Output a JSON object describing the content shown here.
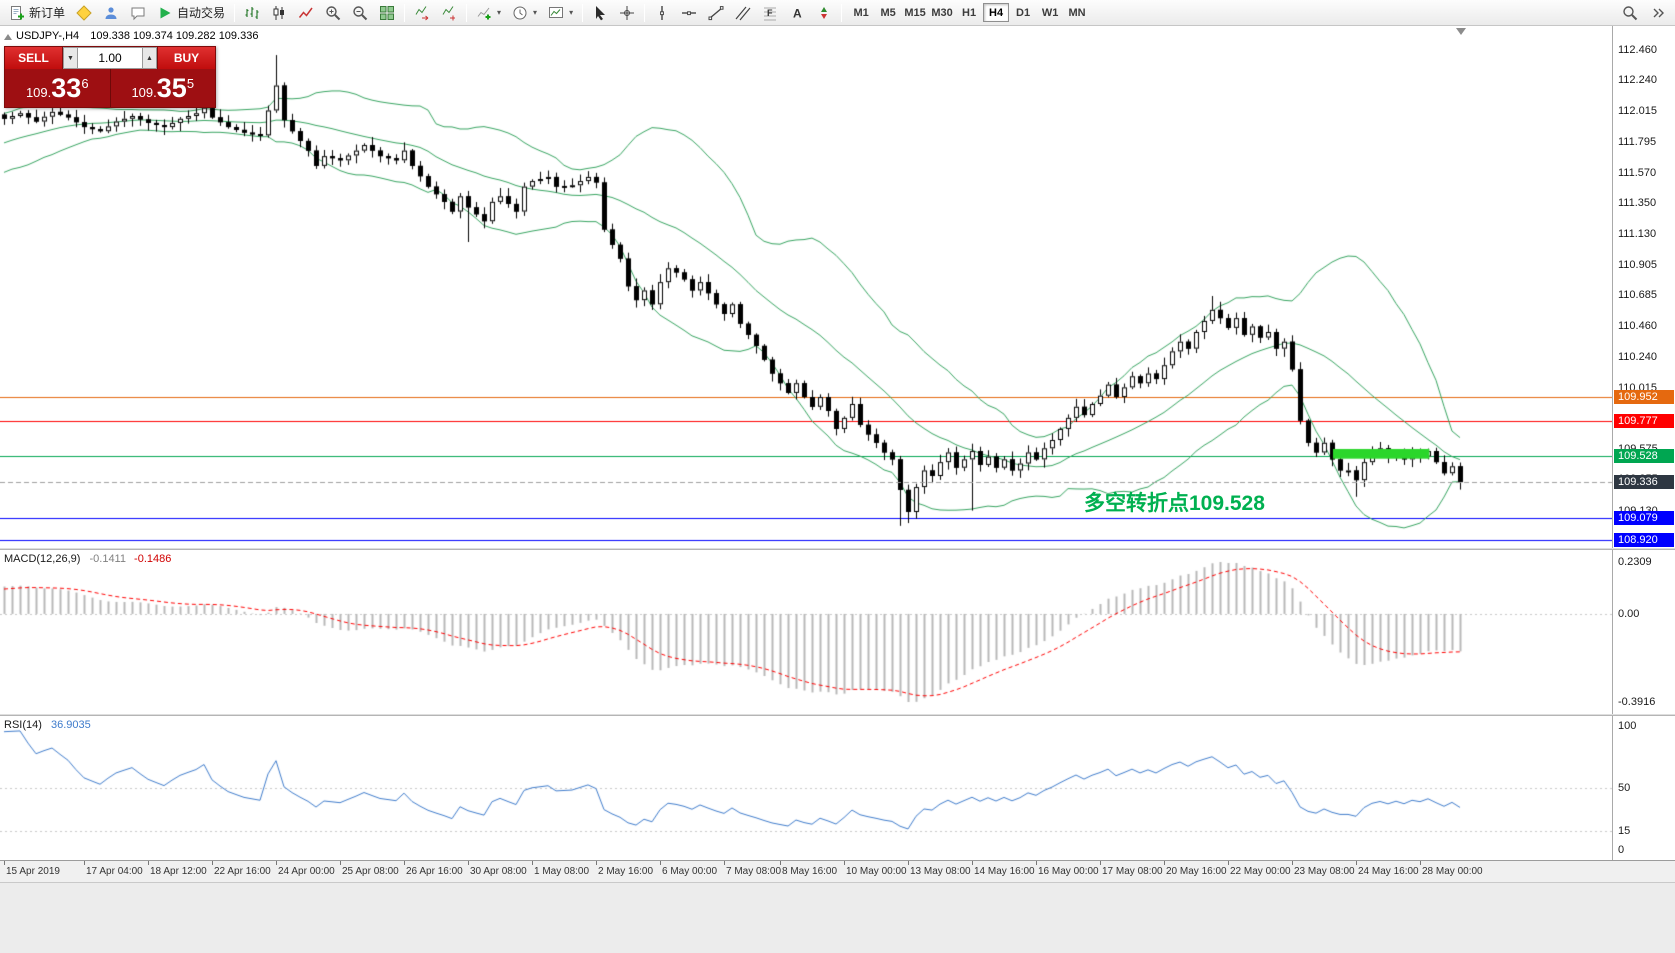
{
  "toolbar": {
    "new_order_label": "新订单",
    "autotrading_label": "自动交易",
    "timeframes": [
      "M1",
      "M5",
      "M15",
      "M30",
      "H1",
      "H4",
      "D1",
      "W1",
      "MN"
    ],
    "active_timeframe": "H4",
    "volume_down_glyph": "▼",
    "volume_up_glyph": "▲"
  },
  "icons": {
    "new-order": "document-green-plus",
    "metaeditor": "yellow-diamond",
    "mql5-community": "person",
    "chat": "speech-bubble",
    "autotrading": "green-play",
    "bar-chart": "ohlc-bars",
    "candlestick-chart": "candles",
    "line-chart": "polyline",
    "zoom-in": "magnifier-plus",
    "zoom-out": "magnifier-minus",
    "tile-windows": "green-grid",
    "auto-scroll": "chart-arrow-right",
    "chart-shift": "chart-shift-arrow",
    "indicators": "chart-green-plus",
    "periods": "clock",
    "templates": "chart-template",
    "cursor": "pointer-arrow",
    "crosshair": "cross",
    "vertical-line": "v-line",
    "horizontal-line": "h-line",
    "trendline": "diagonal-line",
    "channel": "parallel-lines",
    "fibonacci": "fibo-levels",
    "text": "letter-A",
    "arrows": "arrow-stamps",
    "search": "magnifier",
    "more": "double-chevron"
  },
  "chart": {
    "header": {
      "symbol": "USDJPY-,H4",
      "ohlc": "109.338 109.374 109.282 109.336"
    },
    "annotation": {
      "text": "多空转折点109.528",
      "color": "#00B050",
      "bar": 135,
      "price": 109.21
    }
  },
  "trade_panel": {
    "sell_label": "SELL",
    "buy_label": "BUY",
    "volume": "1.00",
    "bid": {
      "prefix": "109.",
      "big": "33",
      "sup": "6"
    },
    "ask": {
      "prefix": "109.",
      "big": "35",
      "sup": "5"
    }
  },
  "chart_data": {
    "type": "candlestick",
    "symbol": "USDJPY- H4",
    "bars": 183,
    "current_ohlc": {
      "open": 109.338,
      "high": 109.374,
      "low": 109.282,
      "close": 109.336
    },
    "price_axis": {
      "min": 108.86,
      "max": 112.63,
      "ticks": [
        112.46,
        112.24,
        112.015,
        111.795,
        111.57,
        111.35,
        111.13,
        110.905,
        110.685,
        110.46,
        110.24,
        110.015,
        109.795,
        109.575,
        109.355,
        109.13,
        108.905
      ]
    },
    "close_anchors": [
      [
        0,
        111.96
      ],
      [
        2,
        112.0
      ],
      [
        4,
        111.94
      ],
      [
        6,
        112.01
      ],
      [
        8,
        111.97
      ],
      [
        10,
        111.9
      ],
      [
        12,
        111.87
      ],
      [
        14,
        111.94
      ],
      [
        16,
        111.98
      ],
      [
        18,
        111.93
      ],
      [
        20,
        111.9
      ],
      [
        22,
        111.96
      ],
      [
        24,
        112.0
      ],
      [
        25,
        112.04
      ],
      [
        26,
        111.97
      ],
      [
        28,
        111.9
      ],
      [
        30,
        111.86
      ],
      [
        32,
        111.84
      ],
      [
        34,
        112.2
      ],
      [
        35,
        111.95
      ],
      [
        36,
        111.87
      ],
      [
        38,
        111.73
      ],
      [
        39,
        111.62
      ],
      [
        40,
        111.69
      ],
      [
        42,
        111.66
      ],
      [
        44,
        111.73
      ],
      [
        45,
        111.77
      ],
      [
        47,
        111.69
      ],
      [
        49,
        111.66
      ],
      [
        50,
        111.73
      ],
      [
        51,
        111.62
      ],
      [
        53,
        111.47
      ],
      [
        55,
        111.36
      ],
      [
        56,
        111.29
      ],
      [
        57,
        111.4
      ],
      [
        58,
        111.32
      ],
      [
        60,
        111.22
      ],
      [
        61,
        111.36
      ],
      [
        62,
        111.4
      ],
      [
        64,
        111.29
      ],
      [
        65,
        111.47
      ],
      [
        66,
        111.51
      ],
      [
        68,
        111.54
      ],
      [
        69,
        111.47
      ],
      [
        71,
        111.48
      ],
      [
        73,
        111.54
      ],
      [
        74,
        111.5
      ],
      [
        75,
        111.16
      ],
      [
        76,
        111.05
      ],
      [
        77,
        110.95
      ],
      [
        78,
        110.75
      ],
      [
        79,
        110.65
      ],
      [
        80,
        110.72
      ],
      [
        81,
        110.62
      ],
      [
        82,
        110.78
      ],
      [
        83,
        110.88
      ],
      [
        84,
        110.85
      ],
      [
        85,
        110.8
      ],
      [
        86,
        110.72
      ],
      [
        87,
        110.78
      ],
      [
        88,
        110.7
      ],
      [
        89,
        110.62
      ],
      [
        90,
        110.55
      ],
      [
        91,
        110.62
      ],
      [
        92,
        110.48
      ],
      [
        93,
        110.4
      ],
      [
        94,
        110.32
      ],
      [
        95,
        110.22
      ],
      [
        96,
        110.12
      ],
      [
        97,
        110.05
      ],
      [
        98,
        109.98
      ],
      [
        99,
        110.05
      ],
      [
        100,
        109.95
      ],
      [
        101,
        109.88
      ],
      [
        102,
        109.95
      ],
      [
        103,
        109.85
      ],
      [
        104,
        109.72
      ],
      [
        105,
        109.8
      ],
      [
        106,
        109.9
      ],
      [
        107,
        109.75
      ],
      [
        108,
        109.68
      ],
      [
        109,
        109.62
      ],
      [
        110,
        109.55
      ],
      [
        111,
        109.5
      ],
      [
        112,
        109.28
      ],
      [
        113,
        109.12
      ],
      [
        114,
        109.3
      ],
      [
        115,
        109.42
      ],
      [
        116,
        109.38
      ],
      [
        117,
        109.48
      ],
      [
        118,
        109.55
      ],
      [
        119,
        109.44
      ],
      [
        120,
        109.5
      ],
      [
        121,
        109.56
      ],
      [
        122,
        109.46
      ],
      [
        123,
        109.52
      ],
      [
        124,
        109.44
      ],
      [
        125,
        109.5
      ],
      [
        126,
        109.42
      ],
      [
        127,
        109.47
      ],
      [
        128,
        109.55
      ],
      [
        129,
        109.5
      ],
      [
        130,
        109.58
      ],
      [
        131,
        109.64
      ],
      [
        132,
        109.72
      ],
      [
        133,
        109.8
      ],
      [
        134,
        109.88
      ],
      [
        135,
        109.82
      ],
      [
        136,
        109.9
      ],
      [
        137,
        109.96
      ],
      [
        138,
        110.04
      ],
      [
        139,
        109.95
      ],
      [
        140,
        110.02
      ],
      [
        141,
        110.1
      ],
      [
        142,
        110.05
      ],
      [
        143,
        110.12
      ],
      [
        144,
        110.08
      ],
      [
        145,
        110.18
      ],
      [
        146,
        110.28
      ],
      [
        147,
        110.35
      ],
      [
        148,
        110.3
      ],
      [
        149,
        110.42
      ],
      [
        150,
        110.5
      ],
      [
        151,
        110.58
      ],
      [
        152,
        110.52
      ],
      [
        153,
        110.45
      ],
      [
        154,
        110.52
      ],
      [
        155,
        110.4
      ],
      [
        156,
        110.46
      ],
      [
        157,
        110.38
      ],
      [
        158,
        110.42
      ],
      [
        159,
        110.3
      ],
      [
        160,
        110.35
      ],
      [
        161,
        110.15
      ],
      [
        162,
        109.78
      ],
      [
        163,
        109.62
      ],
      [
        164,
        109.55
      ],
      [
        165,
        109.62
      ],
      [
        166,
        109.5
      ],
      [
        167,
        109.42
      ],
      [
        168,
        109.42
      ],
      [
        169,
        109.35
      ],
      [
        170,
        109.48
      ],
      [
        171,
        109.55
      ],
      [
        172,
        109.58
      ],
      [
        173,
        109.52
      ],
      [
        174,
        109.56
      ],
      [
        175,
        109.5
      ],
      [
        176,
        109.55
      ],
      [
        177,
        109.52
      ],
      [
        178,
        109.56
      ],
      [
        179,
        109.48
      ],
      [
        180,
        109.4
      ],
      [
        181,
        109.45
      ],
      [
        182,
        109.336
      ]
    ],
    "wick_overrides": [
      {
        "bar": 25,
        "high": 112.17
      },
      {
        "bar": 34,
        "high": 112.42
      },
      {
        "bar": 58,
        "low": 111.07
      },
      {
        "bar": 112,
        "low": 109.02
      },
      {
        "bar": 113,
        "low": 109.04
      },
      {
        "bar": 121,
        "low": 109.13
      },
      {
        "bar": 151,
        "high": 110.68
      },
      {
        "bar": 169,
        "low": 109.23
      },
      {
        "bar": 182,
        "high": 109.374,
        "low": 109.282
      }
    ],
    "overlays": {
      "bollinger": {
        "period": 20,
        "deviation": 2,
        "color": "#35a35f"
      },
      "hlines": [
        {
          "price": 109.952,
          "color": "#E5690F"
        },
        {
          "price": 109.777,
          "color": "#FF0000"
        },
        {
          "price": 109.528,
          "color": "#00A651"
        },
        {
          "price": 109.079,
          "color": "#0000FF"
        },
        {
          "price": 108.92,
          "color": "#0000FF"
        }
      ],
      "current_price": {
        "value": 109.336,
        "line_color": "#9e9e9e",
        "label_bg": "#2E3742"
      },
      "rectangle": {
        "bar_start": 166.5,
        "bar_end": 177.8,
        "price_top": 109.575,
        "price_bottom": 109.505,
        "color": "#2BD62B"
      }
    },
    "time_axis": [
      {
        "bar": 0,
        "label": "15 Apr 2019"
      },
      {
        "bar": 10,
        "label": "17 Apr 04:00"
      },
      {
        "bar": 18,
        "label": "18 Apr 12:00"
      },
      {
        "bar": 26,
        "label": "22 Apr 16:00"
      },
      {
        "bar": 34,
        "label": "24 Apr 00:00"
      },
      {
        "bar": 42,
        "label": "25 Apr 08:00"
      },
      {
        "bar": 50,
        "label": "26 Apr 16:00"
      },
      {
        "bar": 58,
        "label": "30 Apr 08:00"
      },
      {
        "bar": 66,
        "label": "1 May 08:00"
      },
      {
        "bar": 74,
        "label": "2 May 16:00"
      },
      {
        "bar": 82,
        "label": "6 May 00:00"
      },
      {
        "bar": 90,
        "label": "7 May 08:00"
      },
      {
        "bar": 97,
        "label": "8 May 16:00"
      },
      {
        "bar": 105,
        "label": "10 May 00:00"
      },
      {
        "bar": 113,
        "label": "13 May 08:00"
      },
      {
        "bar": 121,
        "label": "14 May 16:00"
      },
      {
        "bar": 129,
        "label": "16 May 00:00"
      },
      {
        "bar": 137,
        "label": "17 May 08:00"
      },
      {
        "bar": 145,
        "label": "20 May 16:00"
      },
      {
        "bar": 153,
        "label": "22 May 00:00"
      },
      {
        "bar": 161,
        "label": "23 May 08:00"
      },
      {
        "bar": 169,
        "label": "24 May 16:00"
      },
      {
        "bar": 177,
        "label": "28 May 00:00"
      }
    ],
    "indicators": {
      "macd": {
        "label": "MACD(12,26,9)",
        "value_main": "-0.1411",
        "value_signal": "-0.1486",
        "axis": [
          {
            "v": 0.2309,
            "label": "0.2309"
          },
          {
            "v": 0,
            "label": "0.00"
          },
          {
            "v": -0.3916,
            "label": "-0.3916"
          }
        ],
        "histogram_color": "#b8b8b8",
        "signal_color": "#FF0000"
      },
      "rsi": {
        "label": "RSI(14)",
        "value": "36.9035",
        "axis": [
          {
            "v": 100,
            "label": "100"
          },
          {
            "v": 50,
            "label": "50"
          },
          {
            "v": 15,
            "label": "15"
          },
          {
            "v": 0,
            "label": "0"
          }
        ],
        "color": "#3E7BCB"
      }
    }
  }
}
